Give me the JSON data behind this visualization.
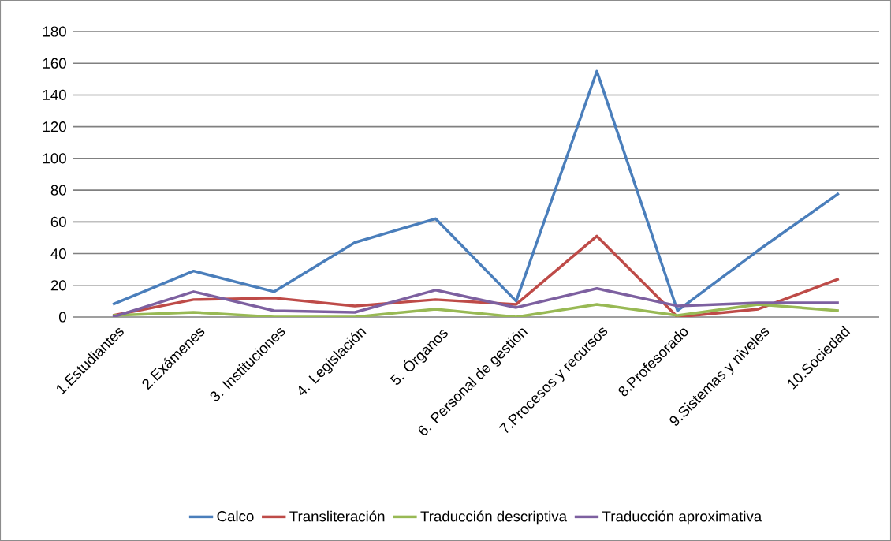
{
  "chart_data": {
    "type": "line",
    "categories": [
      "1.Estudiantes",
      "2.Exámenes",
      "3. Instituciones",
      "4. Legislación",
      "5. Órganos",
      "6. Personal de gestión",
      "7.Procesos y recursos",
      "8.Profesorado",
      "9.Sistemas y niveles",
      "10.Sociedad"
    ],
    "series": [
      {
        "name": "Calco",
        "color": "#4a7ebb",
        "values": [
          8,
          29,
          16,
          47,
          62,
          10,
          155,
          4,
          42,
          78
        ]
      },
      {
        "name": "Transliteración",
        "color": "#be4b48",
        "values": [
          1,
          11,
          12,
          7,
          11,
          8,
          51,
          0,
          5,
          24
        ]
      },
      {
        "name": "Traducción descriptiva",
        "color": "#98b954",
        "values": [
          1,
          3,
          0,
          0,
          5,
          0,
          8,
          1,
          8,
          4
        ]
      },
      {
        "name": "Traducción aproximativa",
        "color": "#7d60a0",
        "values": [
          0,
          16,
          4,
          3,
          17,
          6,
          18,
          7,
          9,
          9
        ]
      }
    ],
    "ylim": [
      0,
      180
    ],
    "yticks": [
      0,
      20,
      40,
      60,
      80,
      100,
      120,
      140,
      160,
      180
    ],
    "grid": "y",
    "legend": "bottom",
    "marker": "none",
    "line_style": "solid"
  }
}
